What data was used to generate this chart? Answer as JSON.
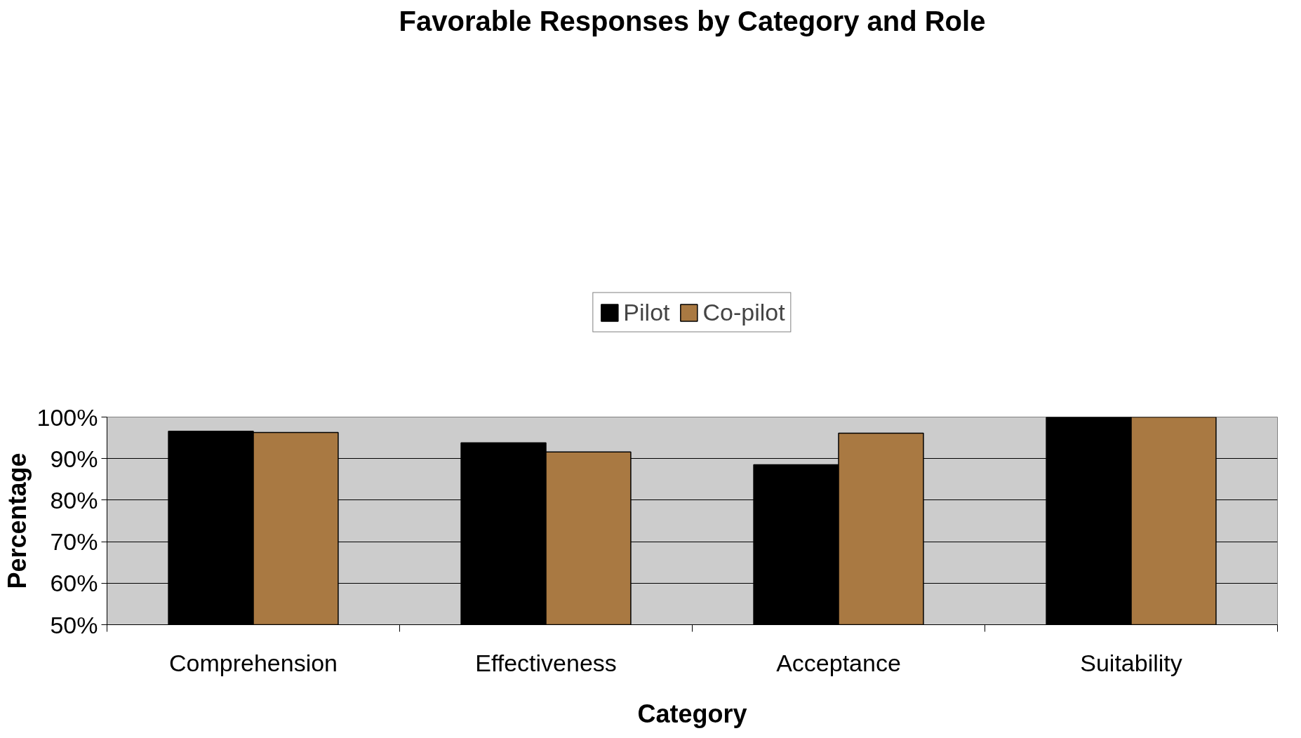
{
  "chart_data": {
    "type": "bar",
    "title": "Favorable Responses by Category and Role",
    "xlabel": "Category",
    "ylabel": "Percentage",
    "categories": [
      "Comprehension",
      "Effectiveness",
      "Acceptance",
      "Suitability"
    ],
    "series": [
      {
        "name": "Pilot",
        "color": "#000000",
        "values": [
          96.6,
          93.8,
          88.5,
          100
        ]
      },
      {
        "name": "Co-pilot",
        "color": "#a97942",
        "values": [
          96.3,
          91.6,
          96.1,
          100
        ]
      }
    ],
    "ylim": [
      50,
      100
    ],
    "yticks": [
      {
        "value": 50,
        "label": "50%"
      },
      {
        "value": 60,
        "label": "60%"
      },
      {
        "value": 70,
        "label": "70%"
      },
      {
        "value": 80,
        "label": "80%"
      },
      {
        "value": 90,
        "label": "90%"
      },
      {
        "value": 100,
        "label": "100%"
      }
    ],
    "grid": "y",
    "legend": "top"
  }
}
